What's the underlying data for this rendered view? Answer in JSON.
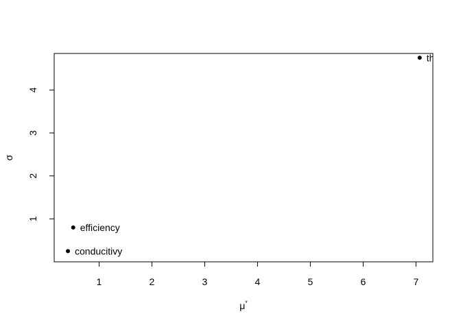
{
  "chart_data": {
    "type": "scatter",
    "title": "",
    "xlabel": "μ",
    "xlabel_superscript": "*",
    "ylabel": "σ",
    "xlim": [
      0.15,
      7.32
    ],
    "ylim": [
      0.0,
      4.85
    ],
    "x_ticks": [
      "1",
      "2",
      "3",
      "4",
      "5",
      "6",
      "7"
    ],
    "y_ticks": [
      "1",
      "2",
      "3",
      "4"
    ],
    "grid": false,
    "points": [
      {
        "label": "th",
        "x": 7.07,
        "y": 4.75
      },
      {
        "label": "efficiency",
        "x": 0.51,
        "y": 0.8
      },
      {
        "label": "conducitivy",
        "x": 0.41,
        "y": 0.25
      }
    ]
  }
}
